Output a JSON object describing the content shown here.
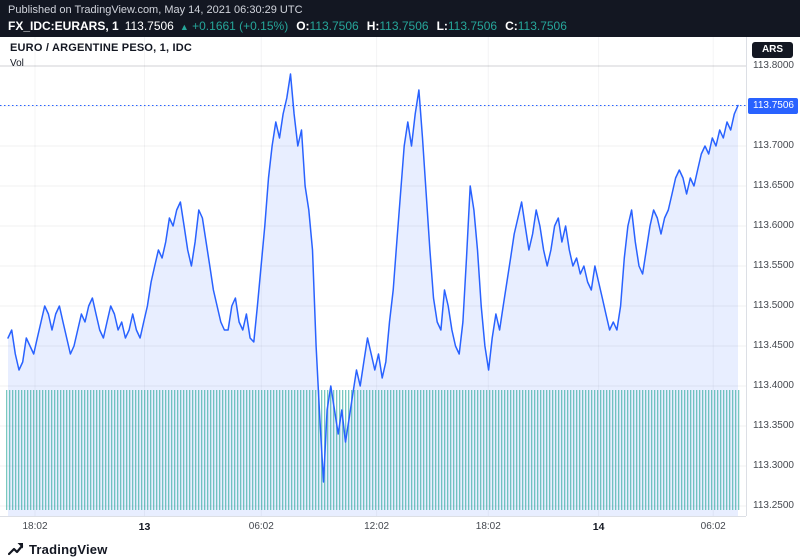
{
  "header": {
    "published": "Published on TradingView.com, May 14, 2021 06:30:29 UTC",
    "symbol": "FX_IDC:EURARS, 1",
    "price": "113.7506",
    "arrow": "▲",
    "change": "+0.1661 (+0.15%)",
    "ohlc": [
      {
        "label": "O:",
        "value": "113.7506"
      },
      {
        "label": "H:",
        "value": "113.7506"
      },
      {
        "label": "L:",
        "value": "113.7506"
      },
      {
        "label": "C:",
        "value": "113.7506"
      }
    ]
  },
  "legend": {
    "title": "EURO / ARGENTINE PESO, 1, IDC",
    "vol": "Vol"
  },
  "axis": {
    "currency": "ARS",
    "badge": "113.7506",
    "labels": [
      {
        "text": "113.8000",
        "value": 113.8
      },
      {
        "text": "113.7000",
        "value": 113.7
      },
      {
        "text": "113.6500",
        "value": 113.65
      },
      {
        "text": "113.6000",
        "value": 113.6
      },
      {
        "text": "113.5500",
        "value": 113.55
      },
      {
        "text": "113.5000",
        "value": 113.5
      },
      {
        "text": "113.4500",
        "value": 113.45
      },
      {
        "text": "113.4000",
        "value": 113.4
      },
      {
        "text": "113.3500",
        "value": 113.35
      },
      {
        "text": "113.3000",
        "value": 113.3
      },
      {
        "text": "113.2500",
        "value": 113.25
      }
    ]
  },
  "time_axis": [
    {
      "text": "18:02",
      "f": 0.037,
      "day": false
    },
    {
      "text": "13",
      "f": 0.187,
      "day": true
    },
    {
      "text": "06:02",
      "f": 0.347,
      "day": false
    },
    {
      "text": "12:02",
      "f": 0.505,
      "day": false
    },
    {
      "text": "18:02",
      "f": 0.658,
      "day": false
    },
    {
      "text": "14",
      "f": 0.809,
      "day": true
    },
    {
      "text": "06:02",
      "f": 0.966,
      "day": false
    }
  ],
  "footer": {
    "brand": "TradingView"
  },
  "colors": {
    "accent": "#2962ff",
    "up_green": "#26a69a",
    "header_bg": "#131722",
    "volume": "#26a69a",
    "badge_bg": "#2962ff"
  },
  "chart_data": {
    "type": "area",
    "title": "EURO / ARGENTINE PESO, 1, IDC",
    "interval": "1 minute",
    "exchange": "IDC",
    "ylabel": "ARS",
    "ylim": [
      113.25,
      113.8
    ],
    "y_ticks": [
      113.8,
      113.75,
      113.7,
      113.65,
      113.6,
      113.55,
      113.5,
      113.45,
      113.4,
      113.35,
      113.3,
      113.25
    ],
    "x_ticks": [
      "18:02",
      "13",
      "06:02",
      "12:02",
      "18:02",
      "14",
      "06:02"
    ],
    "last": 113.7506,
    "open": 113.7506,
    "high": 113.7506,
    "low": 113.7506,
    "close": 113.7506,
    "change": 0.1661,
    "change_pct": 0.15,
    "volume_top_price": 113.395,
    "values": [
      113.46,
      113.47,
      113.44,
      113.42,
      113.43,
      113.46,
      113.45,
      113.44,
      113.46,
      113.48,
      113.5,
      113.49,
      113.47,
      113.49,
      113.5,
      113.48,
      113.46,
      113.44,
      113.45,
      113.47,
      113.49,
      113.48,
      113.5,
      113.51,
      113.49,
      113.47,
      113.46,
      113.48,
      113.5,
      113.49,
      113.47,
      113.48,
      113.46,
      113.47,
      113.49,
      113.47,
      113.46,
      113.48,
      113.5,
      113.53,
      113.55,
      113.57,
      113.56,
      113.58,
      113.61,
      113.6,
      113.62,
      113.63,
      113.6,
      113.57,
      113.55,
      113.58,
      113.62,
      113.61,
      113.58,
      113.55,
      113.52,
      113.5,
      113.48,
      113.47,
      113.47,
      113.5,
      113.51,
      113.48,
      113.47,
      113.49,
      113.46,
      113.455,
      113.5,
      113.55,
      113.6,
      113.66,
      113.7,
      113.73,
      113.71,
      113.74,
      113.76,
      113.79,
      113.74,
      113.7,
      113.72,
      113.65,
      113.62,
      113.57,
      113.45,
      113.36,
      113.28,
      113.37,
      113.4,
      113.37,
      113.34,
      113.37,
      113.33,
      113.36,
      113.39,
      113.42,
      113.4,
      113.43,
      113.46,
      113.44,
      113.42,
      113.44,
      113.41,
      113.43,
      113.48,
      113.52,
      113.58,
      113.64,
      113.7,
      113.73,
      113.7,
      113.74,
      113.77,
      113.71,
      113.64,
      113.57,
      113.51,
      113.48,
      113.47,
      113.52,
      113.5,
      113.47,
      113.45,
      113.44,
      113.48,
      113.56,
      113.65,
      113.62,
      113.57,
      113.5,
      113.45,
      113.42,
      113.46,
      113.49,
      113.47,
      113.5,
      113.53,
      113.56,
      113.59,
      113.61,
      113.63,
      113.6,
      113.57,
      113.59,
      113.62,
      113.6,
      113.57,
      113.55,
      113.57,
      113.6,
      113.61,
      113.58,
      113.6,
      113.57,
      113.55,
      113.56,
      113.54,
      113.55,
      113.53,
      113.52,
      113.55,
      113.53,
      113.51,
      113.49,
      113.47,
      113.48,
      113.47,
      113.5,
      113.56,
      113.6,
      113.62,
      113.58,
      113.55,
      113.54,
      113.57,
      113.6,
      113.62,
      113.61,
      113.59,
      113.61,
      113.62,
      113.64,
      113.66,
      113.67,
      113.66,
      113.64,
      113.66,
      113.65,
      113.67,
      113.69,
      113.7,
      113.69,
      113.71,
      113.7,
      113.72,
      113.71,
      113.73,
      113.72,
      113.74,
      113.7506
    ]
  }
}
